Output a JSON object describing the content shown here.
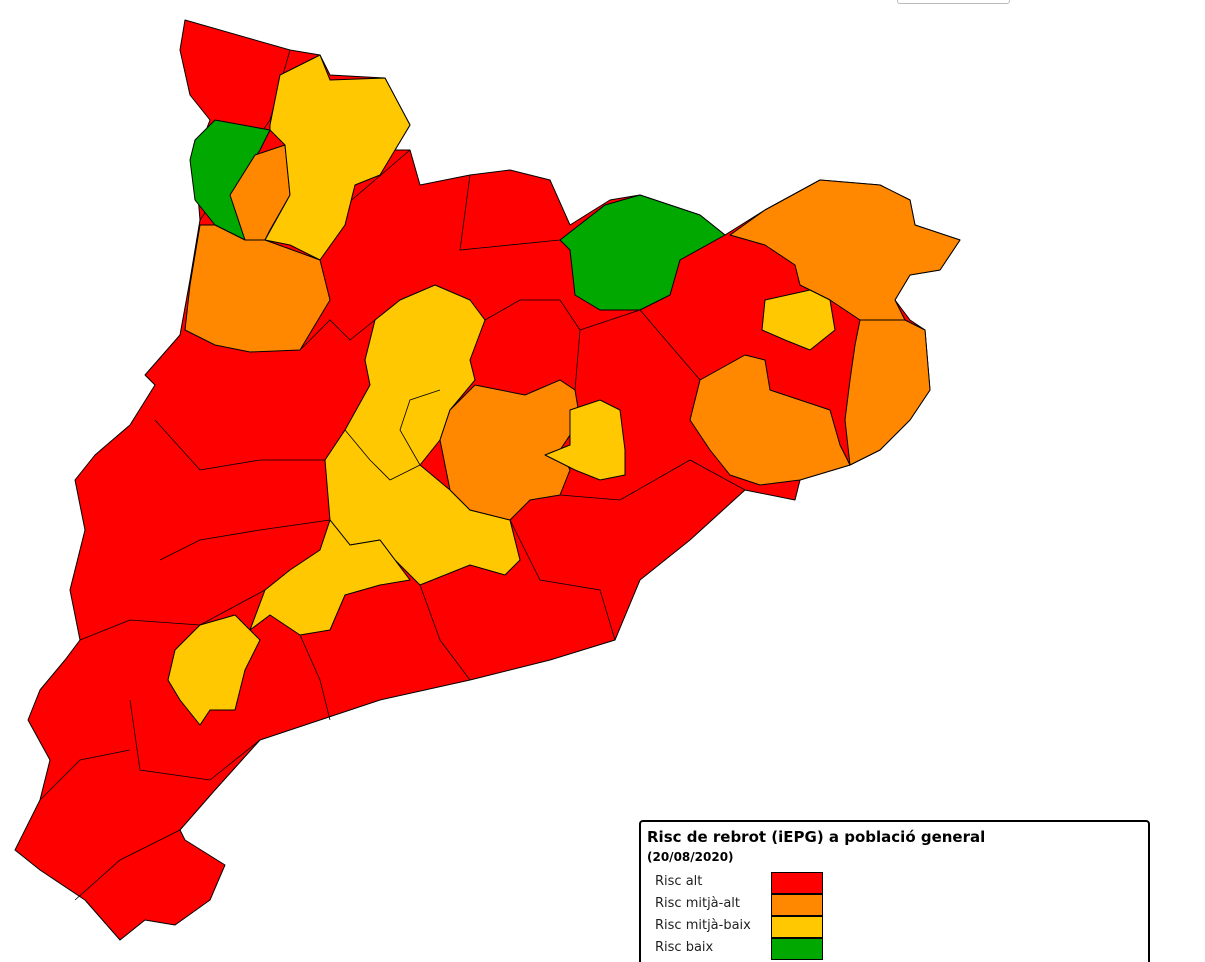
{
  "legend": {
    "title": "Risc de rebrot (iEPG) a població general",
    "subtitle": "(20/08/2020)",
    "items": [
      {
        "label": "Risc alt",
        "color": "#ff0000"
      },
      {
        "label": "Risc mitjà-alt",
        "color": "#ff8800"
      },
      {
        "label": "Risc mitjà-baix",
        "color": "#ffc800"
      },
      {
        "label": "Risc baix",
        "color": "#00a800"
      }
    ]
  }
}
